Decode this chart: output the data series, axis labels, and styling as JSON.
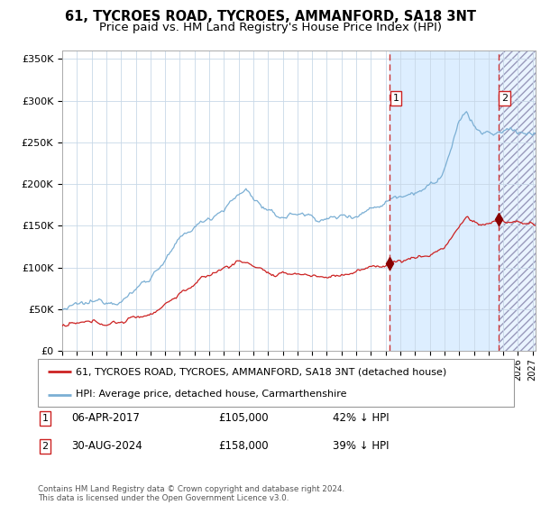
{
  "title": "61, TYCROES ROAD, TYCROES, AMMANFORD, SA18 3NT",
  "subtitle": "Price paid vs. HM Land Registry's House Price Index (HPI)",
  "ylim": [
    0,
    360000
  ],
  "yticks": [
    0,
    50000,
    100000,
    150000,
    200000,
    250000,
    300000,
    350000
  ],
  "ytick_labels": [
    "£0",
    "£50K",
    "£100K",
    "£150K",
    "£200K",
    "£250K",
    "£300K",
    "£350K"
  ],
  "hpi_color": "#7bafd4",
  "price_color": "#cc2222",
  "marker_color": "#880000",
  "sale1_date": 2017.27,
  "sale1_price": 105000,
  "sale2_date": 2024.67,
  "sale2_price": 158000,
  "vline_color": "#cc3333",
  "shade_color": "#ddeeff",
  "legend1": "61, TYCROES ROAD, TYCROES, AMMANFORD, SA18 3NT (detached house)",
  "legend2": "HPI: Average price, detached house, Carmarthenshire",
  "note1_date": "06-APR-2017",
  "note1_price": "£105,000",
  "note1_pct": "42% ↓ HPI",
  "note2_date": "30-AUG-2024",
  "note2_price": "£158,000",
  "note2_pct": "39% ↓ HPI",
  "footer": "Contains HM Land Registry data © Crown copyright and database right 2024.\nThis data is licensed under the Open Government Licence v3.0.",
  "xmin": 1995.0,
  "xmax": 2027.2
}
